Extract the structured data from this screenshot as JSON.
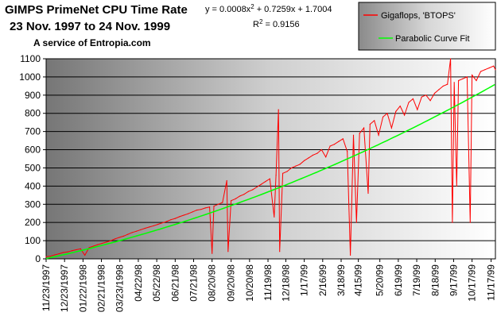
{
  "chart_data": {
    "type": "line",
    "title": "GIMPS PrimeNet CPU Time Rate",
    "subtitle": "23 Nov. 1997 to 24 Nov. 1999",
    "credit": "A service of Entropia.com",
    "equation": {
      "prefix": "y = 0.0008x",
      "mid": " + 0.7259x + 1.7004",
      "sup": "2"
    },
    "r2": {
      "prefix": "R",
      "sup": "2",
      "suffix": " = 0.9156"
    },
    "ylim": [
      0,
      1100
    ],
    "yticks": [
      0,
      100,
      200,
      300,
      400,
      500,
      600,
      700,
      800,
      900,
      1000,
      1100
    ],
    "xlim_days": [
      0,
      731
    ],
    "xticks": [
      "11/23/1997",
      "12/23/1997",
      "01/22/1998",
      "02/21/1998",
      "03/23/1998",
      "04/22/98",
      "05/22/98",
      "06/21/98",
      "07/21/98",
      "08/20/98",
      "09/20/98",
      "10/20/98",
      "11/19/98",
      "12/18/98",
      "1/17/99",
      "2/16/99",
      "3/18/99",
      "4/15/99",
      "5/20/99",
      "6/19/99",
      "7/19/99",
      "8/18/99",
      "9/17/99",
      "10/17/99",
      "11/17/99"
    ],
    "xtick_days": [
      0,
      30,
      60,
      90,
      120,
      150,
      180,
      210,
      240,
      270,
      301,
      331,
      361,
      390,
      420,
      450,
      480,
      508,
      543,
      573,
      603,
      633,
      663,
      693,
      724
    ],
    "series": [
      {
        "name": "Gigaflops, 'BTOPS'",
        "color": "#ff0000",
        "style": "daily noisy line",
        "points": [
          [
            0,
            12
          ],
          [
            7,
            15
          ],
          [
            14,
            22
          ],
          [
            21,
            28
          ],
          [
            28,
            35
          ],
          [
            35,
            38
          ],
          [
            42,
            45
          ],
          [
            49,
            50
          ],
          [
            56,
            55
          ],
          [
            63,
            20
          ],
          [
            70,
            62
          ],
          [
            77,
            70
          ],
          [
            84,
            78
          ],
          [
            91,
            85
          ],
          [
            98,
            92
          ],
          [
            105,
            100
          ],
          [
            112,
            110
          ],
          [
            119,
            118
          ],
          [
            126,
            125
          ],
          [
            133,
            135
          ],
          [
            140,
            145
          ],
          [
            147,
            152
          ],
          [
            154,
            160
          ],
          [
            161,
            168
          ],
          [
            168,
            175
          ],
          [
            175,
            182
          ],
          [
            182,
            190
          ],
          [
            189,
            198
          ],
          [
            196,
            205
          ],
          [
            203,
            215
          ],
          [
            210,
            222
          ],
          [
            217,
            232
          ],
          [
            224,
            240
          ],
          [
            231,
            248
          ],
          [
            238,
            258
          ],
          [
            245,
            268
          ],
          [
            252,
            272
          ],
          [
            259,
            280
          ],
          [
            266,
            285
          ],
          [
            270,
            30
          ],
          [
            273,
            290
          ],
          [
            280,
            300
          ],
          [
            287,
            310
          ],
          [
            294,
            430
          ],
          [
            296,
            40
          ],
          [
            301,
            320
          ],
          [
            308,
            330
          ],
          [
            315,
            345
          ],
          [
            322,
            355
          ],
          [
            329,
            370
          ],
          [
            336,
            380
          ],
          [
            343,
            395
          ],
          [
            350,
            410
          ],
          [
            357,
            425
          ],
          [
            364,
            440
          ],
          [
            371,
            230
          ],
          [
            374,
            460
          ],
          [
            378,
            820
          ],
          [
            380,
            40
          ],
          [
            385,
            470
          ],
          [
            392,
            480
          ],
          [
            399,
            500
          ],
          [
            406,
            510
          ],
          [
            413,
            520
          ],
          [
            420,
            540
          ],
          [
            427,
            555
          ],
          [
            434,
            570
          ],
          [
            441,
            580
          ],
          [
            448,
            600
          ],
          [
            455,
            560
          ],
          [
            462,
            620
          ],
          [
            469,
            630
          ],
          [
            476,
            645
          ],
          [
            483,
            660
          ],
          [
            490,
            590
          ],
          [
            495,
            20
          ],
          [
            500,
            680
          ],
          [
            505,
            200
          ],
          [
            510,
            690
          ],
          [
            517,
            720
          ],
          [
            524,
            360
          ],
          [
            527,
            740
          ],
          [
            534,
            760
          ],
          [
            541,
            680
          ],
          [
            548,
            780
          ],
          [
            555,
            800
          ],
          [
            562,
            720
          ],
          [
            569,
            810
          ],
          [
            576,
            840
          ],
          [
            583,
            790
          ],
          [
            590,
            860
          ],
          [
            597,
            880
          ],
          [
            604,
            820
          ],
          [
            611,
            890
          ],
          [
            618,
            900
          ],
          [
            625,
            870
          ],
          [
            632,
            910
          ],
          [
            639,
            930
          ],
          [
            646,
            950
          ],
          [
            653,
            960
          ],
          [
            658,
            1100
          ],
          [
            661,
            200
          ],
          [
            664,
            970
          ],
          [
            668,
            400
          ],
          [
            671,
            980
          ],
          [
            678,
            990
          ],
          [
            685,
            1000
          ],
          [
            690,
            200
          ],
          [
            693,
            1010
          ],
          [
            700,
            980
          ],
          [
            707,
            1030
          ],
          [
            714,
            1040
          ],
          [
            721,
            1050
          ],
          [
            728,
            1060
          ],
          [
            731,
            1040
          ]
        ]
      },
      {
        "name": "Parabolic Curve Fit",
        "color": "#00ff00",
        "a": 0.0008,
        "b": 0.7259,
        "c": 1.7004
      }
    ],
    "grid": true,
    "legend_position": "top-right"
  }
}
